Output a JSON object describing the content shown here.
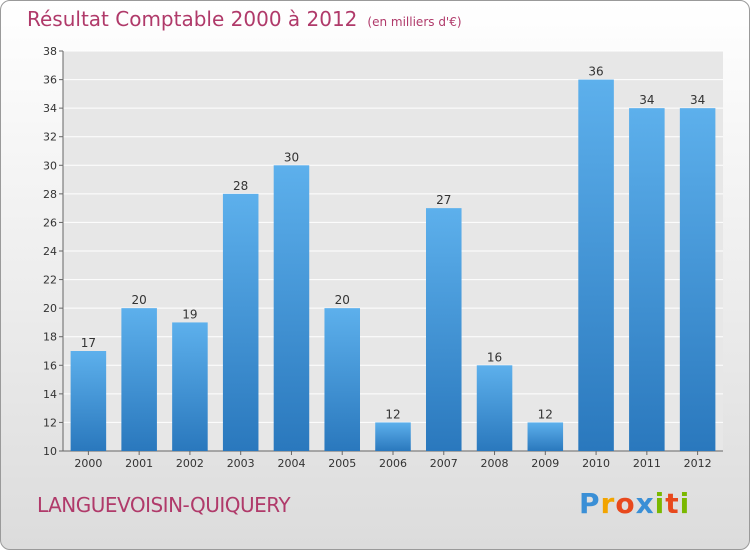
{
  "chart_data": {
    "type": "bar",
    "title": "Résultat Comptable 2000 à 2012",
    "subtitle": "(en milliers d'€)",
    "categories": [
      "2000",
      "2001",
      "2002",
      "2003",
      "2004",
      "2005",
      "2006",
      "2007",
      "2008",
      "2009",
      "2010",
      "2011",
      "2012"
    ],
    "values": [
      17,
      20,
      19,
      28,
      30,
      20,
      12,
      27,
      16,
      12,
      36,
      34,
      34
    ],
    "ylim": [
      10,
      38
    ],
    "yticks": [
      10,
      12,
      14,
      16,
      18,
      20,
      22,
      24,
      26,
      28,
      30,
      32,
      34,
      36,
      38
    ],
    "grid": true,
    "bar_color": "#3d94d6"
  },
  "footer": {
    "commune": "LANGUEVOISIN-QUIQUERY"
  },
  "logo": {
    "letters": [
      "P",
      "r",
      "o",
      "x",
      "i",
      "t",
      "i"
    ],
    "colors": [
      "#3a8fd6",
      "#f2a400",
      "#e8491d",
      "#3a8fd6",
      "#7ab800",
      "#e8491d",
      "#7ab800"
    ]
  }
}
